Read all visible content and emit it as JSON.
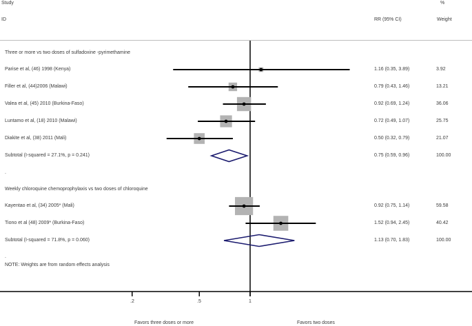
{
  "header": {
    "study_label": "Study",
    "id_label": "ID",
    "rr_label": "RR (95% CI)",
    "pct_label": "%",
    "weight_label": "Weight"
  },
  "groups": [
    {
      "title": "Three or more vs  two doses of sulfadoxine -pyrimethamine",
      "studies": [
        {
          "label": "Parise  et al, (46) 1998 (Kenya)",
          "rr": 1.16,
          "lo": 0.35,
          "hi": 3.89,
          "ci_text": "1.16 (0.35, 3.89)",
          "weight": "3.92"
        },
        {
          "label": "Filler et al, (44)2006  (Malawi)",
          "rr": 0.79,
          "lo": 0.43,
          "hi": 1.46,
          "ci_text": "0.79 (0.43, 1.46)",
          "weight": "13.21"
        },
        {
          "label": "Valea et al, (45) 2010 (Burkina-Faso)",
          "rr": 0.92,
          "lo": 0.69,
          "hi": 1.24,
          "ci_text": "0.92 (0.69, 1.24)",
          "weight": "36.06"
        },
        {
          "label": "Luntamo et al, (18) 2010  (Malawi)",
          "rr": 0.72,
          "lo": 0.49,
          "hi": 1.07,
          "ci_text": "0.72 (0.49, 1.07)",
          "weight": "25.75"
        },
        {
          "label": "Diakite et al, (38) 2011 (Mali)",
          "rr": 0.5,
          "lo": 0.32,
          "hi": 0.79,
          "ci_text": "0.50 (0.32, 0.79)",
          "weight": "21.07"
        }
      ],
      "subtotal": {
        "label": "Subtotal  (I-squared = 27.1%, p = 0.241)",
        "rr": 0.75,
        "lo": 0.59,
        "hi": 0.96,
        "ci_text": "0.75 (0.59, 0.96)",
        "weight": "100.00"
      },
      "separator": "."
    },
    {
      "title": "Weekly chloroquine chemoprophylaxis  vs two doses of chloroquine",
      "studies": [
        {
          "label": "Kayentao et al, (34) 2005* (Mali)",
          "rr": 0.92,
          "lo": 0.75,
          "hi": 1.14,
          "ci_text": "0.92 (0.75, 1.14)",
          "weight": "59.58"
        },
        {
          "label": "Tiono et al (48) 2009* (Burkina-Faso)",
          "rr": 1.52,
          "lo": 0.94,
          "hi": 2.45,
          "ci_text": "1.52 (0.94, 2.45)",
          "weight": "40.42"
        }
      ],
      "subtotal": {
        "label": "Subtotal  (I-squared = 71.8%, p = 0.060)",
        "rr": 1.13,
        "lo": 0.7,
        "hi": 1.83,
        "ci_text": "1.13 (0.70, 1.83)",
        "weight": "100.00"
      },
      "separator": "."
    }
  ],
  "note": "NOTE: Weights are from random effects analysis",
  "axis": {
    "ticks": [
      ".2",
      ".5",
      "1"
    ],
    "left_label": "Favors three doses or more",
    "right_label": "Favors two doses"
  },
  "colors": {
    "box": "#b3b3b3",
    "diamond": "#1a1a6e",
    "line": "#000000"
  },
  "chart_data": {
    "type": "forest",
    "title": "",
    "xlabel": "RR (95% CI)",
    "x_scale": "log",
    "x_ticks": [
      0.2,
      0.5,
      1
    ],
    "x_tick_labels": [
      ".2",
      ".5",
      "1"
    ],
    "null_line": 1,
    "left_annotation": "Favors three doses or more",
    "right_annotation": "Favors two doses",
    "columns": [
      "Study ID",
      "RR (95% CI)",
      "% Weight"
    ],
    "series": [
      {
        "name": "Three or more vs  two doses of sulfadoxine -pyrimethamine",
        "studies": [
          {
            "study": "Parise  et al, (46) 1998 (Kenya)",
            "rr": 1.16,
            "ci": [
              0.35,
              3.89
            ],
            "weight": 3.92
          },
          {
            "study": "Filler et al, (44)2006  (Malawi)",
            "rr": 0.79,
            "ci": [
              0.43,
              1.46
            ],
            "weight": 13.21
          },
          {
            "study": "Valea et al, (45) 2010 (Burkina-Faso)",
            "rr": 0.92,
            "ci": [
              0.69,
              1.24
            ],
            "weight": 36.06
          },
          {
            "study": "Luntamo et al, (18) 2010  (Malawi)",
            "rr": 0.72,
            "ci": [
              0.49,
              1.07
            ],
            "weight": 25.75
          },
          {
            "study": "Diakite et al, (38) 2011 (Mali)",
            "rr": 0.5,
            "ci": [
              0.32,
              0.79
            ],
            "weight": 21.07
          }
        ],
        "subtotal": {
          "label": "Subtotal  (I-squared = 27.1%, p = 0.241)",
          "rr": 0.75,
          "ci": [
            0.59,
            0.96
          ],
          "weight": 100.0
        }
      },
      {
        "name": "Weekly chloroquine chemoprophylaxis  vs two doses of chloroquine",
        "studies": [
          {
            "study": "Kayentao et al, (34) 2005* (Mali)",
            "rr": 0.92,
            "ci": [
              0.75,
              1.14
            ],
            "weight": 59.58
          },
          {
            "study": "Tiono et al (48) 2009* (Burkina-Faso)",
            "rr": 1.52,
            "ci": [
              0.94,
              2.45
            ],
            "weight": 40.42
          }
        ],
        "subtotal": {
          "label": "Subtotal  (I-squared = 71.8%, p = 0.060)",
          "rr": 1.13,
          "ci": [
            0.7,
            1.83
          ],
          "weight": 100.0
        }
      }
    ],
    "footnote": "NOTE: Weights are from random effects analysis"
  }
}
